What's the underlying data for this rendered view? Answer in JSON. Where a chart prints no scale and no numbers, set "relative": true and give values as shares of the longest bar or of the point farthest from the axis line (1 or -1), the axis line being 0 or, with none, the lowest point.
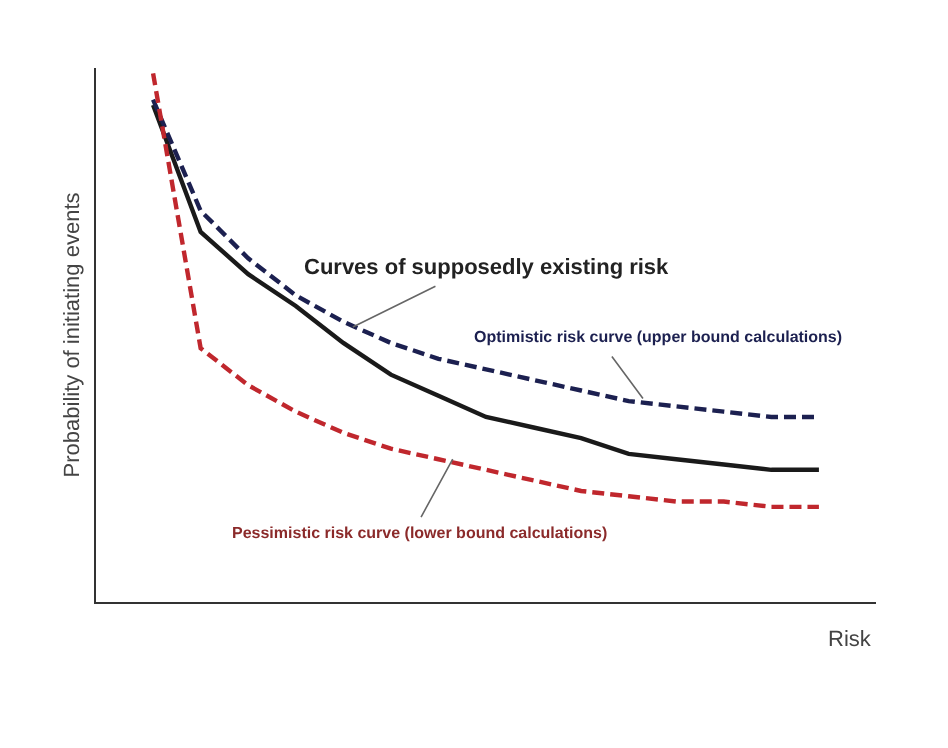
{
  "chart_data": {
    "type": "line",
    "relative": true,
    "xlabel": "Risk",
    "ylabel": "Probability of initiating events",
    "categories": [
      null,
      null,
      null,
      null,
      null,
      null,
      null,
      null,
      null,
      null,
      null,
      null,
      null,
      null,
      null
    ],
    "series": [
      {
        "color": "#1a1a1a",
        "line_style": "solid",
        "values": [
          0.94,
          0.7,
          0.62,
          0.56,
          0.49,
          0.43,
          0.39,
          0.35,
          0.33,
          0.31,
          0.28,
          0.27,
          0.26,
          0.25,
          0.25
        ]
      },
      {
        "color": "#1c2050",
        "line_style": "dashed",
        "values": [
          0.95,
          0.74,
          0.65,
          0.58,
          0.53,
          0.49,
          0.46,
          0.44,
          0.42,
          0.4,
          0.38,
          0.37,
          0.36,
          0.35,
          0.35
        ]
      },
      {
        "color": "#c0272d",
        "line_style": "dashed",
        "values": [
          1.0,
          0.48,
          0.41,
          0.36,
          0.32,
          0.29,
          0.27,
          0.25,
          0.23,
          0.21,
          0.2,
          0.19,
          0.19,
          0.18,
          0.18
        ]
      }
    ],
    "annotations": [
      "Curves of supposedly existing risk",
      "Optimistic risk curve (upper bound calculations)",
      "Pessimistic risk curve (lower bound calculations)"
    ],
    "marker": "none"
  }
}
